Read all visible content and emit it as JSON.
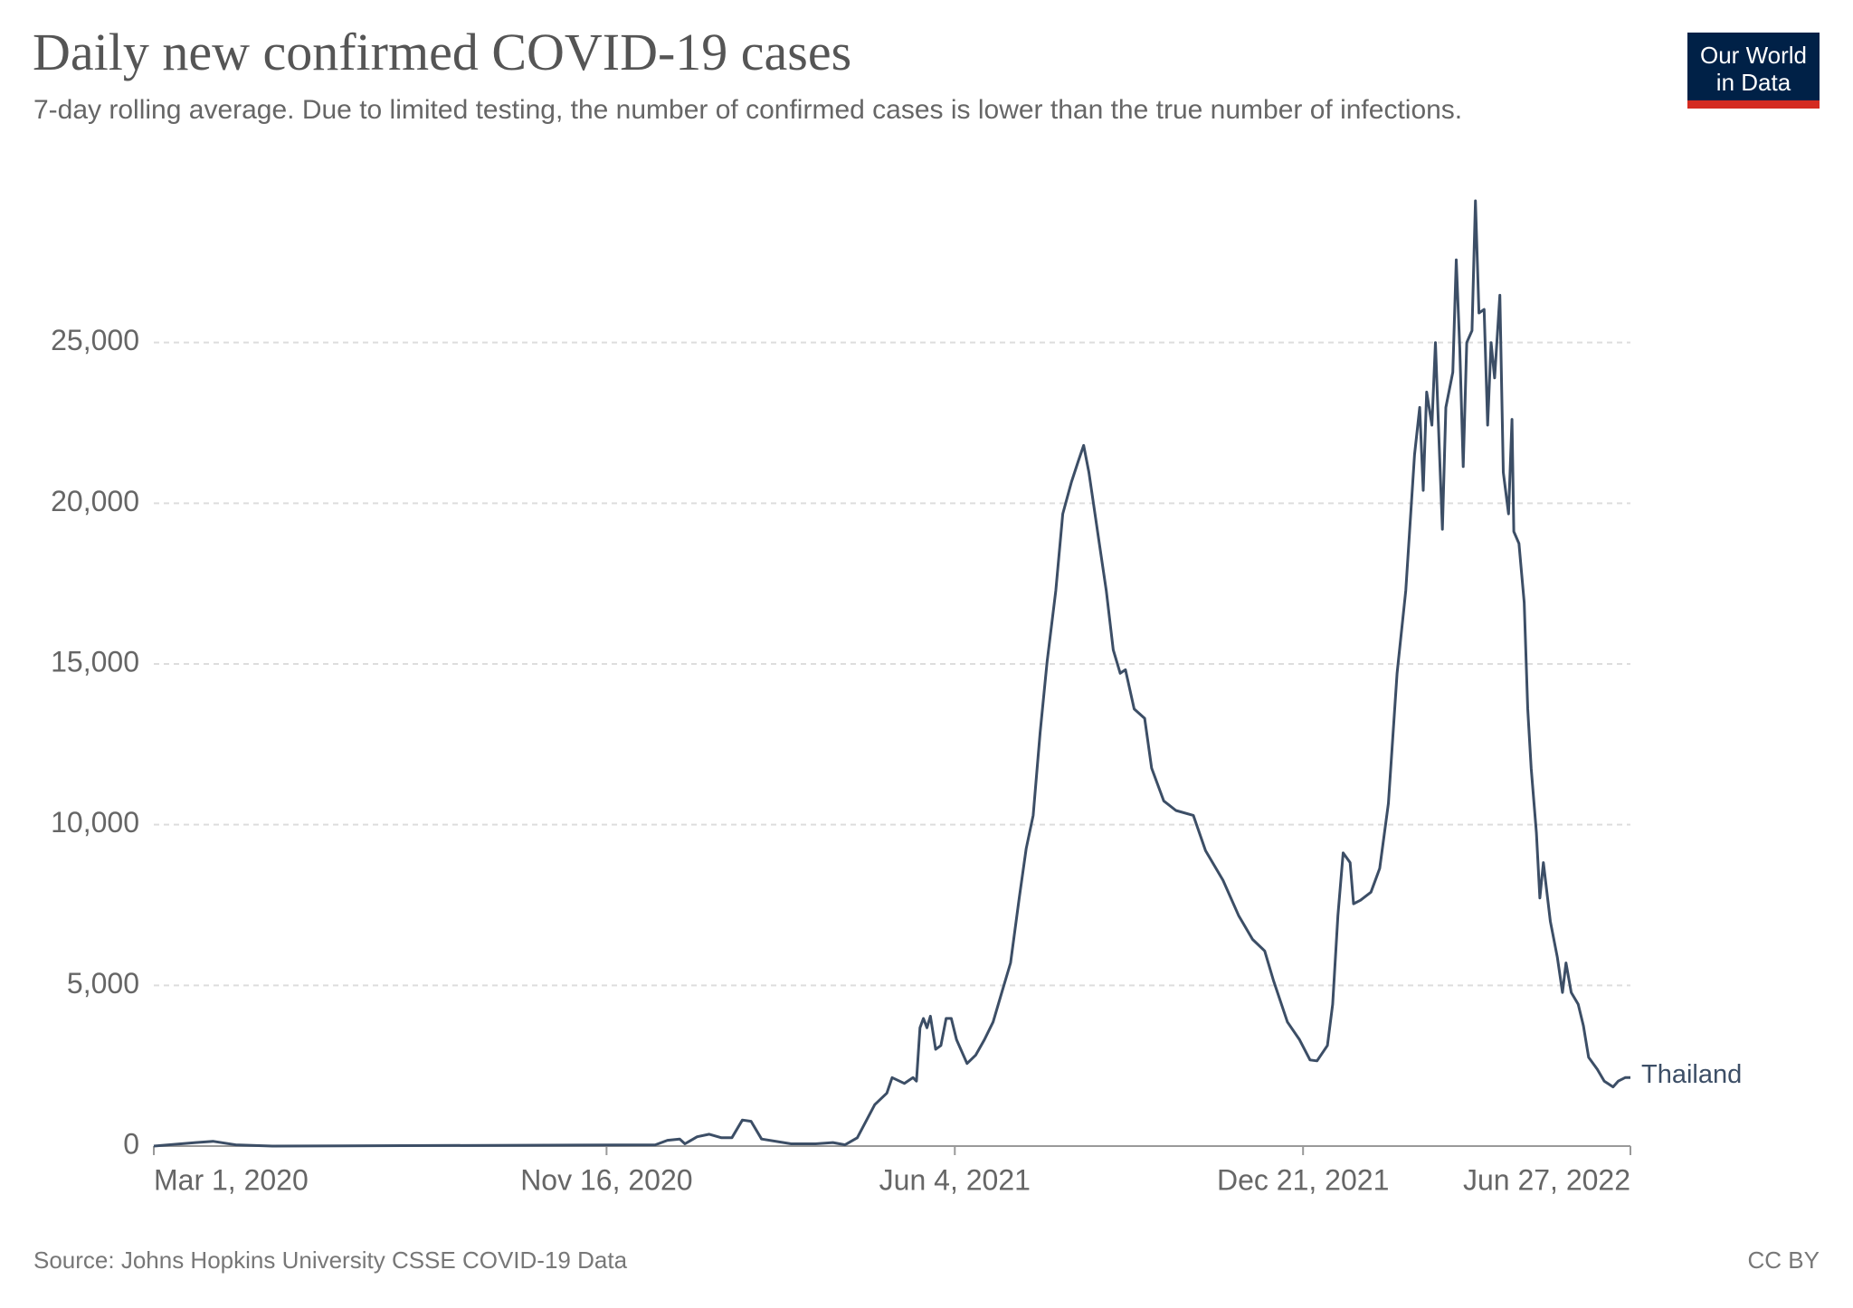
{
  "chart_data": {
    "type": "line",
    "title": "Daily new confirmed COVID-19 cases",
    "subtitle": "7-day rolling average. Due to limited testing, the number of confirmed cases is lower than the true number of infections.",
    "logo": [
      "Our World",
      "in Data"
    ],
    "source": "Source: Johns Hopkins University CSSE COVID-19 Data",
    "license": "CC BY",
    "x": [
      "2020-03-01",
      "2020-03-25",
      "2020-04-04",
      "2020-04-17",
      "2020-05-08",
      "2020-12-14",
      "2020-12-21",
      "2020-12-28",
      "2020-12-31",
      "2021-01-07",
      "2021-01-14",
      "2021-01-21",
      "2021-01-27",
      "2021-02-02",
      "2021-02-07",
      "2021-02-13",
      "2021-03-02",
      "2021-03-16",
      "2021-03-26",
      "2021-04-02",
      "2021-04-09",
      "2021-04-19",
      "2021-04-26",
      "2021-04-29",
      "2021-05-06",
      "2021-05-11",
      "2021-05-13",
      "2021-05-15",
      "2021-05-17",
      "2021-05-19",
      "2021-05-21",
      "2021-05-24",
      "2021-05-27",
      "2021-05-30",
      "2021-06-02",
      "2021-06-05",
      "2021-06-11",
      "2021-06-16",
      "2021-06-21",
      "2021-06-26",
      "2021-07-01",
      "2021-07-06",
      "2021-07-11",
      "2021-07-15",
      "2021-07-19",
      "2021-07-23",
      "2021-07-27",
      "2021-08-01",
      "2021-08-05",
      "2021-08-10",
      "2021-08-14",
      "2021-08-17",
      "2021-08-20",
      "2021-08-26",
      "2021-08-30",
      "2021-09-03",
      "2021-09-07",
      "2021-09-10",
      "2021-09-15",
      "2021-09-21",
      "2021-09-25",
      "2021-10-02",
      "2021-10-09",
      "2021-10-19",
      "2021-10-26",
      "2021-11-05",
      "2021-11-14",
      "2021-11-22",
      "2021-11-29",
      "2021-12-04",
      "2021-12-12",
      "2021-12-19",
      "2021-12-25",
      "2021-12-29",
      "2022-01-04",
      "2022-01-07",
      "2022-01-10",
      "2022-01-13",
      "2022-01-17",
      "2022-01-19",
      "2022-01-23",
      "2022-01-29",
      "2022-02-03",
      "2022-02-08",
      "2022-02-13",
      "2022-02-18",
      "2022-02-23",
      "2022-02-26",
      "2022-02-28",
      "2022-03-02",
      "2022-03-05",
      "2022-03-07",
      "2022-03-09",
      "2022-03-11",
      "2022-03-13",
      "2022-03-17",
      "2022-03-19",
      "2022-03-21",
      "2022-03-23",
      "2022-03-25",
      "2022-03-28",
      "2022-03-30",
      "2022-04-01",
      "2022-04-04",
      "2022-04-06",
      "2022-04-08",
      "2022-04-10",
      "2022-04-13",
      "2022-04-15",
      "2022-04-18",
      "2022-04-20",
      "2022-04-21",
      "2022-04-24",
      "2022-04-27",
      "2022-04-29",
      "2022-05-01",
      "2022-05-04",
      "2022-05-06",
      "2022-05-08",
      "2022-05-12",
      "2022-05-16",
      "2022-05-19",
      "2022-05-21",
      "2022-05-24",
      "2022-05-28",
      "2022-05-31",
      "2022-06-03",
      "2022-06-08",
      "2022-06-12",
      "2022-06-17",
      "2022-06-20",
      "2022-06-24",
      "2022-06-27"
    ],
    "series": [
      {
        "name": "Thailand",
        "color": "#3c4e66",
        "values": [
          0,
          110,
          150,
          40,
          0,
          40,
          180,
          220,
          70,
          290,
          370,
          260,
          260,
          810,
          770,
          220,
          70,
          70,
          110,
          40,
          260,
          1290,
          1650,
          2130,
          1950,
          2130,
          2020,
          3680,
          3970,
          3680,
          4040,
          3010,
          3130,
          3970,
          3970,
          3310,
          2570,
          2830,
          3310,
          3860,
          4780,
          5700,
          7720,
          9260,
          10290,
          12870,
          15070,
          17280,
          19670,
          20660,
          21320,
          21800,
          20960,
          18750,
          17280,
          15440,
          14710,
          14820,
          13600,
          13310,
          11760,
          10740,
          10440,
          10290,
          9190,
          8270,
          7170,
          6430,
          6070,
          5150,
          3860,
          3310,
          2680,
          2650,
          3130,
          4410,
          7170,
          9120,
          8820,
          7540,
          7650,
          7900,
          8640,
          10660,
          14710,
          17280,
          21510,
          22980,
          20400,
          23460,
          22430,
          25000,
          22060,
          19190,
          22980,
          24080,
          27570,
          24820,
          21140,
          25000,
          25370,
          29410,
          25920,
          26030,
          22430,
          25000,
          23900,
          26470,
          20960,
          19670,
          22610,
          19120,
          18750,
          16910,
          13600,
          11760,
          9740,
          7720,
          8820,
          6990,
          5880,
          4780,
          5700,
          4780,
          4410,
          3750,
          2760,
          2390,
          2020,
          1840,
          2020,
          2130,
          2130
        ]
      }
    ],
    "xlim": [
      "2020-03-01",
      "2022-06-27"
    ],
    "xticks": [
      {
        "value": "2020-03-01",
        "label": "Mar 1, 2020"
      },
      {
        "value": "2020-11-16",
        "label": "Nov 16, 2020"
      },
      {
        "value": "2021-06-04",
        "label": "Jun 4, 2021"
      },
      {
        "value": "2021-12-21",
        "label": "Dec 21, 2021"
      },
      {
        "value": "2022-06-27",
        "label": "Jun 27, 2022"
      }
    ],
    "ylim": [
      0,
      30000
    ],
    "yticks": [
      0,
      {
        "value": 5000,
        "label": "5,000"
      },
      {
        "value": 10000,
        "label": "10,000"
      },
      {
        "value": 15000,
        "label": "15,000"
      },
      {
        "value": 20000,
        "label": "20,000"
      },
      {
        "value": 25000,
        "label": "25,000"
      }
    ],
    "grid": true
  }
}
